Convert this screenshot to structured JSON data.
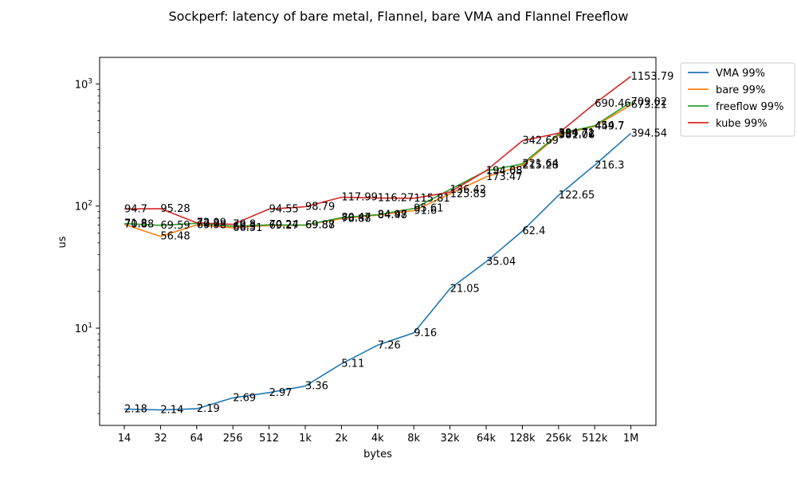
{
  "chart_data": {
    "type": "line",
    "title": "Sockperf: latency of bare metal, Flannel, bare VMA and Flannel Freeflow",
    "xlabel": "bytes",
    "ylabel": "us",
    "yscale": "log",
    "ylim": [
      1.6,
      1650
    ],
    "categories": [
      "14",
      "32",
      "64",
      "256",
      "512",
      "1k",
      "2k",
      "4k",
      "8k",
      "32k",
      "64k",
      "128k",
      "256k",
      "512k",
      "1M"
    ],
    "y_ticks": [
      {
        "value": 10,
        "base": "10",
        "exp": "1"
      },
      {
        "value": 100,
        "base": "10",
        "exp": "2"
      },
      {
        "value": 1000,
        "base": "10",
        "exp": "3"
      }
    ],
    "legend_position": "outside-top-right",
    "series": [
      {
        "name": "VMA 99%",
        "color": "#1f77b4",
        "values": [
          2.18,
          2.14,
          2.19,
          2.69,
          2.97,
          3.36,
          5.11,
          7.26,
          9.16,
          21.05,
          35.04,
          62.4,
          122.65,
          216.3,
          394.54
        ],
        "labels": [
          "2.18",
          "2.14",
          "2.19",
          "2.69",
          "2.97",
          "3.36",
          "5.11",
          "7.26",
          "9.16",
          "21.05",
          "35.04",
          "62.4",
          "122.65",
          "216.3",
          "394.54"
        ]
      },
      {
        "name": "bare 99%",
        "color": "#ff7f0e",
        "values": [
          70.88,
          56.48,
          69.98,
          66.51,
          69.27,
          69.88,
          78.88,
          84.48,
          91.6,
          125.83,
          173.47,
          215.28,
          381.06,
          449.7,
          673.21
        ],
        "labels": [
          "70.88",
          "56.48",
          "69.98",
          "66.51",
          "69.27",
          "69.88",
          "78.88",
          "84.48",
          "91.6",
          "125.83",
          "173.47",
          "215.28",
          "381.06",
          "449.7",
          "673.21"
        ]
      },
      {
        "name": "freeflow 99%",
        "color": "#2ca02c",
        "values": [
          71.8,
          69.59,
          72.2,
          68.3,
          70.24,
          69.87,
          80.47,
          84.97,
          95.61,
          136.42,
          194.08,
          221.64,
          389.72,
          454.7,
          709.02
        ],
        "labels": [
          "71.8",
          "69.59",
          "72.2",
          "68.3",
          "70.24",
          "69.87",
          "80.47",
          "84.97",
          "95.61",
          "136.42",
          "194.08",
          "221.64",
          "389.72",
          "454.7",
          "709.02"
        ]
      },
      {
        "name": "kube 99%",
        "color": "#d62728",
        "values": [
          94.7,
          95.28,
          72.99,
          70.8,
          94.55,
          98.79,
          117.99,
          116.27,
          115.81,
          130.0,
          194.65,
          342.69,
          394.71,
          690.46,
          1153.79
        ],
        "labels": [
          "94.7",
          "95.28",
          "72.99",
          "70.8",
          "94.55",
          "98.79",
          "117.99",
          "116.27",
          "115.81",
          "",
          "194.65",
          "342.69",
          "394.71",
          "690.46",
          "1153.79"
        ]
      }
    ]
  }
}
